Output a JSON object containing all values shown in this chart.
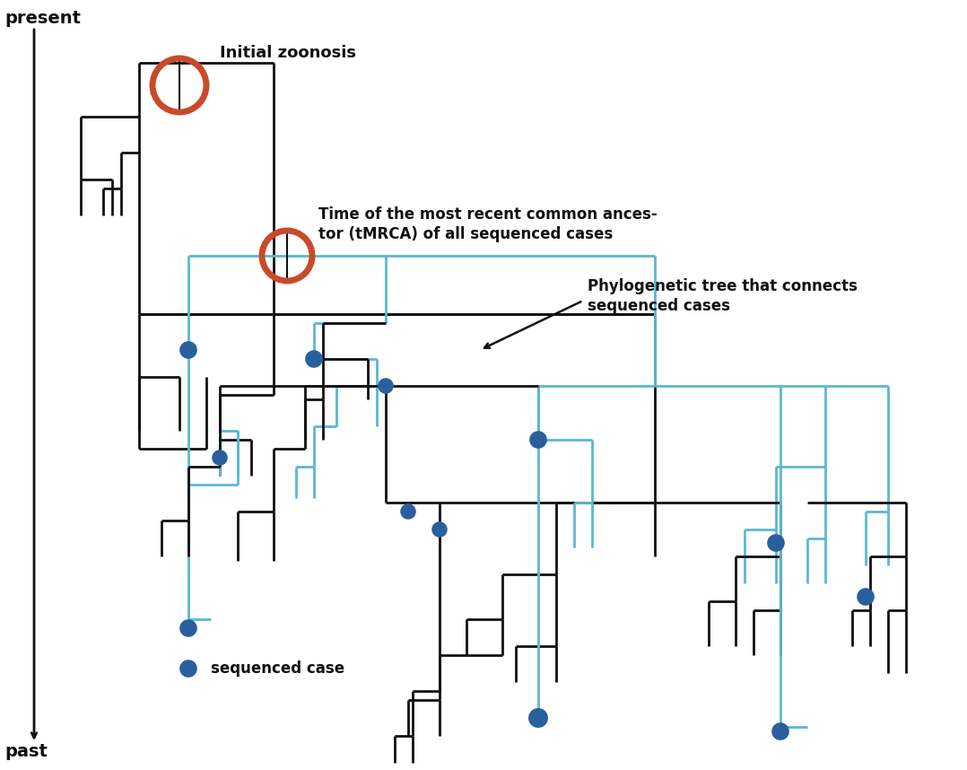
{
  "bg_color": "#ffffff",
  "black_color": "#111111",
  "blue_color": "#2a5f9e",
  "orange_color": "#c94a2a",
  "light_blue_color": "#5bb8d4",
  "title": "past",
  "bottom_label": "present",
  "label_zoonosis": "Initial zoonosis",
  "label_tmrca": "Time of the most recent common ances-\ntor (tMRCA) of all sequenced cases",
  "label_phylo": "Phylogenetic tree that connects\nsequenced cases",
  "label_seq": "sequenced case",
  "figw": 10.78,
  "figh": 8.58,
  "dpi": 100
}
